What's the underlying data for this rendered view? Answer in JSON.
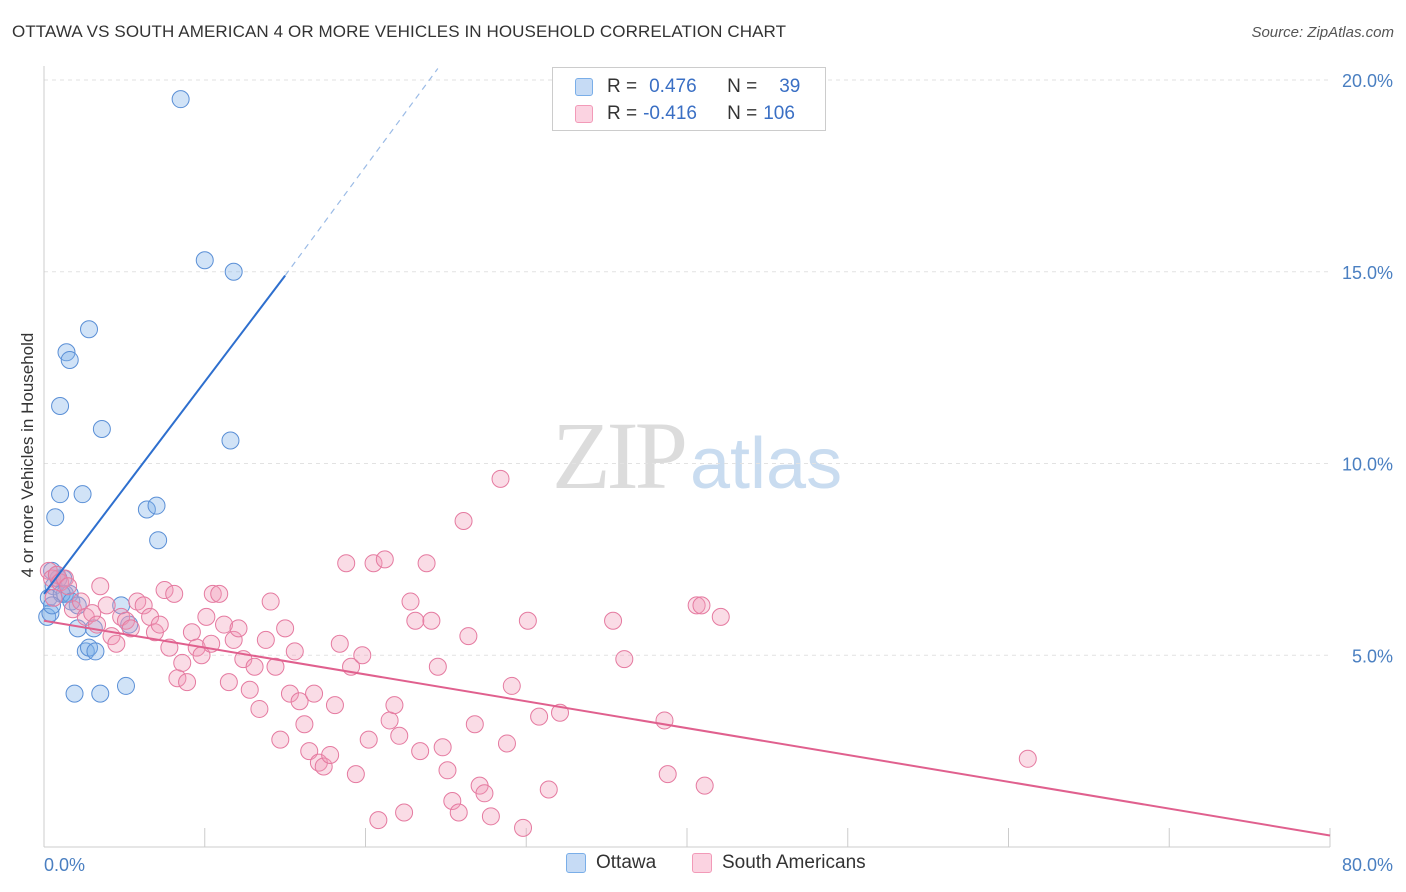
{
  "title": "OTTAWA VS SOUTH AMERICAN 4 OR MORE VEHICLES IN HOUSEHOLD CORRELATION CHART",
  "source": "Source: ZipAtlas.com",
  "watermark": {
    "zip": "ZIP",
    "atlas": "atlas"
  },
  "legend": {
    "rows": [
      {
        "r_label": "R = ",
        "r_value": "0.476",
        "n_label": "N = ",
        "n_value": "39",
        "color": "#7aaee8"
      },
      {
        "r_label": "R = ",
        "r_value": "-0.416",
        "n_label": "N = ",
        "n_value": "106",
        "color": "#f29ab8"
      }
    ]
  },
  "bottom_legend": [
    {
      "label": "Ottawa",
      "color": "#7aaee8"
    },
    {
      "label": "South Americans",
      "color": "#f29ab8"
    }
  ],
  "chart_data": {
    "type": "scatter",
    "xlabel": "",
    "ylabel": "4 or more Vehicles in Household",
    "xlim": [
      0,
      80
    ],
    "ylim": [
      0,
      20
    ],
    "x_tick_labels": [
      {
        "value": 0,
        "label": "0.0%"
      },
      {
        "value": 80,
        "label": "80.0%"
      }
    ],
    "y_tick_labels": [
      {
        "value": 5,
        "label": "5.0%"
      },
      {
        "value": 10,
        "label": "10.0%"
      },
      {
        "value": 15,
        "label": "15.0%"
      },
      {
        "value": 20,
        "label": "20.0%"
      }
    ],
    "grid": true,
    "series": [
      {
        "name": "Ottawa",
        "color": "#7aaee8",
        "stroke": "#5a8fd6",
        "trend": {
          "x": [
            0,
            15
          ],
          "y": [
            6.6,
            14.9
          ],
          "dashed_to": [
            24.5,
            20.3
          ],
          "color": "#2e6fce"
        },
        "points": [
          [
            8.5,
            19.5
          ],
          [
            10,
            15.3
          ],
          [
            11.8,
            15.0
          ],
          [
            2.8,
            13.5
          ],
          [
            1.4,
            12.9
          ],
          [
            1.6,
            12.7
          ],
          [
            1.0,
            11.5
          ],
          [
            3.6,
            10.9
          ],
          [
            11.6,
            10.6
          ],
          [
            1.0,
            9.2
          ],
          [
            2.4,
            9.2
          ],
          [
            0.7,
            8.6
          ],
          [
            6.4,
            8.8
          ],
          [
            7.0,
            8.9
          ],
          [
            7.1,
            8.0
          ],
          [
            0.5,
            7.2
          ],
          [
            1.2,
            7.0
          ],
          [
            0.6,
            6.8
          ],
          [
            0.9,
            7.0
          ],
          [
            1.3,
            6.6
          ],
          [
            1.6,
            6.6
          ],
          [
            0.3,
            6.5
          ],
          [
            0.2,
            6.0
          ],
          [
            2.1,
            6.3
          ],
          [
            4.8,
            6.3
          ],
          [
            2.1,
            5.7
          ],
          [
            3.1,
            5.7
          ],
          [
            5.3,
            5.8
          ],
          [
            2.6,
            5.1
          ],
          [
            2.8,
            5.2
          ],
          [
            3.2,
            5.1
          ],
          [
            1.9,
            4.0
          ],
          [
            3.5,
            4.0
          ],
          [
            5.1,
            4.2
          ],
          [
            0.4,
            6.1
          ],
          [
            1.1,
            6.6
          ],
          [
            0.8,
            7.1
          ],
          [
            1.7,
            6.4
          ],
          [
            0.5,
            6.3
          ]
        ]
      },
      {
        "name": "South Americans",
        "color": "#f29ab8",
        "stroke": "#e57aa0",
        "trend": {
          "x": [
            0,
            80
          ],
          "y": [
            5.9,
            0.3
          ],
          "color": "#e0608e"
        },
        "points": [
          [
            0.3,
            7.2
          ],
          [
            0.5,
            7.0
          ],
          [
            0.8,
            7.1
          ],
          [
            1.0,
            6.9
          ],
          [
            1.3,
            7.0
          ],
          [
            1.5,
            6.8
          ],
          [
            0.6,
            6.5
          ],
          [
            1.8,
            6.2
          ],
          [
            2.3,
            6.4
          ],
          [
            2.6,
            6.0
          ],
          [
            3.0,
            6.1
          ],
          [
            3.3,
            5.8
          ],
          [
            3.5,
            6.8
          ],
          [
            3.9,
            6.3
          ],
          [
            4.2,
            5.5
          ],
          [
            4.5,
            5.3
          ],
          [
            4.8,
            6.0
          ],
          [
            5.1,
            5.9
          ],
          [
            5.4,
            5.7
          ],
          [
            5.8,
            6.4
          ],
          [
            6.2,
            6.3
          ],
          [
            6.6,
            6.0
          ],
          [
            6.9,
            5.6
          ],
          [
            7.2,
            5.8
          ],
          [
            7.5,
            6.7
          ],
          [
            7.8,
            5.2
          ],
          [
            8.1,
            6.6
          ],
          [
            8.3,
            4.4
          ],
          [
            8.6,
            4.8
          ],
          [
            8.9,
            4.3
          ],
          [
            9.2,
            5.6
          ],
          [
            9.5,
            5.2
          ],
          [
            9.8,
            5.0
          ],
          [
            10.1,
            6.0
          ],
          [
            10.4,
            5.3
          ],
          [
            10.5,
            6.6
          ],
          [
            10.9,
            6.6
          ],
          [
            11.2,
            5.8
          ],
          [
            11.5,
            4.3
          ],
          [
            11.8,
            5.4
          ],
          [
            12.1,
            5.7
          ],
          [
            12.4,
            4.9
          ],
          [
            12.8,
            4.1
          ],
          [
            13.1,
            4.7
          ],
          [
            13.4,
            3.6
          ],
          [
            13.8,
            5.4
          ],
          [
            14.1,
            6.4
          ],
          [
            14.4,
            4.7
          ],
          [
            14.7,
            2.8
          ],
          [
            15.0,
            5.7
          ],
          [
            15.3,
            4.0
          ],
          [
            15.6,
            5.1
          ],
          [
            15.9,
            3.8
          ],
          [
            16.2,
            3.2
          ],
          [
            16.5,
            2.5
          ],
          [
            16.8,
            4.0
          ],
          [
            17.1,
            2.2
          ],
          [
            17.4,
            2.1
          ],
          [
            17.8,
            2.4
          ],
          [
            18.1,
            3.7
          ],
          [
            18.4,
            5.3
          ],
          [
            18.8,
            7.4
          ],
          [
            19.1,
            4.7
          ],
          [
            19.4,
            1.9
          ],
          [
            19.8,
            5.0
          ],
          [
            20.2,
            2.8
          ],
          [
            20.5,
            7.4
          ],
          [
            20.8,
            0.7
          ],
          [
            21.2,
            7.5
          ],
          [
            21.5,
            3.3
          ],
          [
            21.8,
            3.7
          ],
          [
            22.1,
            2.9
          ],
          [
            22.4,
            0.9
          ],
          [
            22.8,
            6.4
          ],
          [
            23.1,
            5.9
          ],
          [
            23.4,
            2.5
          ],
          [
            23.8,
            7.4
          ],
          [
            24.1,
            5.9
          ],
          [
            24.5,
            4.7
          ],
          [
            24.8,
            2.6
          ],
          [
            25.1,
            2.0
          ],
          [
            25.4,
            1.2
          ],
          [
            25.8,
            0.9
          ],
          [
            26.1,
            8.5
          ],
          [
            26.4,
            5.5
          ],
          [
            26.8,
            3.2
          ],
          [
            27.1,
            1.6
          ],
          [
            27.4,
            1.4
          ],
          [
            27.8,
            0.8
          ],
          [
            28.4,
            9.6
          ],
          [
            28.8,
            2.7
          ],
          [
            29.1,
            4.2
          ],
          [
            29.8,
            0.5
          ],
          [
            30.1,
            5.9
          ],
          [
            30.8,
            3.4
          ],
          [
            31.4,
            1.5
          ],
          [
            32.1,
            3.5
          ],
          [
            35.4,
            5.9
          ],
          [
            36.1,
            4.9
          ],
          [
            38.6,
            3.3
          ],
          [
            38.8,
            1.9
          ],
          [
            40.6,
            6.3
          ],
          [
            41.1,
            1.6
          ],
          [
            42.1,
            6.0
          ],
          [
            40.9,
            6.3
          ],
          [
            61.2,
            2.3
          ]
        ]
      }
    ]
  }
}
